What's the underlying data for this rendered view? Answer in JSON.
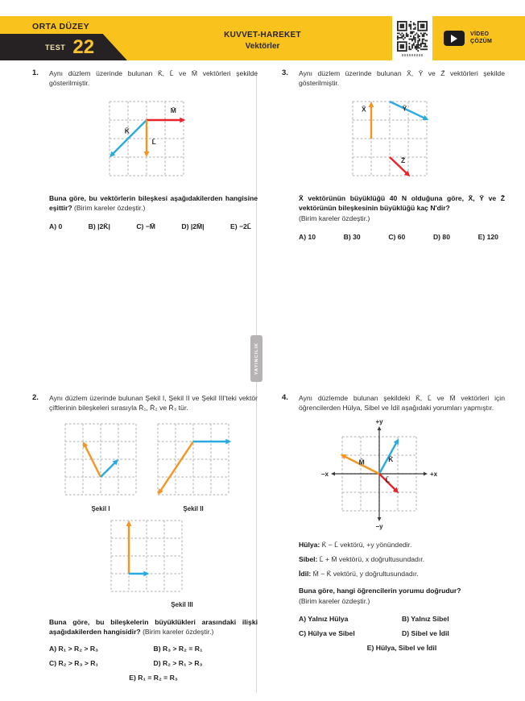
{
  "header": {
    "level": "ORTA DÜZEY",
    "test_word": "TEST",
    "test_number": "22",
    "subject": "KUVVET-HAREKET",
    "topic": "Vektörler",
    "video_label": "VİDEO ÇÖZÜM"
  },
  "divider": {
    "tab_text": "YAYINCILIK"
  },
  "colors": {
    "yellow": "#f9c21d",
    "blue": "#29abe2",
    "orange": "#f7941e",
    "red": "#e8232a",
    "grid": "#c8c8c8",
    "axis": "#3a3a3a",
    "label": "#2a2a2a"
  },
  "q1": {
    "number": "1.",
    "intro": "Aynı düzlem üzerinde bulunan K̄, L̄ ve M̄ vektörleri şekilde gösterilmiştir.",
    "question": "Buna göre, bu vektörlerin bileşkesi aşağıdakilerden hangisine eşittir?",
    "note": "(Birim kareler özdeştir.)",
    "options": [
      "A) 0",
      "B) |2K̄|",
      "C) −M̄",
      "D) |2M̄|",
      "E) −2L̄"
    ]
  },
  "q2": {
    "number": "2.",
    "intro": "Aynı düzlem üzerinde bulunan Şekil I, Şekil II ve Şekil III'teki vektör çiftlerinin bileşkeleri sırasıyla R̄₁, R̄₂ ve R̄₃ tür.",
    "question": "Buna göre, bu bileşkelerin büyüklükleri arasındaki ilişki aşağıdakilerden hangisidir?",
    "note": "(Birim kareler özdeştir.)",
    "captions": [
      "Şekil I",
      "Şekil II",
      "Şekil III"
    ],
    "options": [
      "A) R₁ > R₂ > R₃",
      "B) R₃ > R₂ = R₁",
      "C) R₂ > R₃ > R₁",
      "D) R₂ > R₁ > R₃",
      "E) R₁ = R₂ = R₃"
    ]
  },
  "q3": {
    "number": "3.",
    "intro": "Aynı düzlem üzerinde bulunan X̄, Ȳ ve Z̄ vektörleri şekilde gösterilmiştir.",
    "question": "X̄ vektörünün büyüklüğü 40 N olduğuna göre, X̄, Ȳ ve Z̄ vektörünün bileşkesinin büyüklüğü kaç N'dir?",
    "note": "(Birim kareler özdeştir.)",
    "options": [
      "A) 10",
      "B) 30",
      "C) 60",
      "D) 80",
      "E) 120"
    ]
  },
  "q4": {
    "number": "4.",
    "intro": "Aynı düzlemde bulunan şekildeki K̄, L̄ ve M̄ vektörleri için öğrencilerden Hülya, Sibel ve İdil aşağıdaki yorumları yapmıştır.",
    "statements": [
      {
        "name": "Hülya:",
        "text": "K̄ − L̄ vektörü, +y yönündedir."
      },
      {
        "name": "Sibel:",
        "text": "L̄ + M̄ vektörü, x doğrultusundadır."
      },
      {
        "name": "İdil:",
        "text": "M̄ − K̄ vektörü, y doğrultusundadır."
      }
    ],
    "question": "Buna göre, hangi öğrencilerin yorumu doğrudur?",
    "note": "(Birim kareler özdeştir.)",
    "options": [
      "A) Yalnız Hülya",
      "B) Yalnız Sibel",
      "C) Hülya ve Sibel",
      "D) Sibel ve İdil",
      "E) Hülya, Sibel ve İdil"
    ]
  },
  "figures": {
    "fig1": {
      "cols": 4,
      "rows": 4,
      "cell": 23,
      "padx": 9,
      "pady": 9,
      "vectors": [
        {
          "color": "red",
          "from": [
            2,
            1
          ],
          "to": [
            4.1,
            1
          ],
          "label": "M̄",
          "label_at": [
            3.45,
            0.6
          ]
        },
        {
          "color": "blue",
          "from": [
            2,
            1
          ],
          "to": [
            0,
            3
          ],
          "label": "K̄",
          "label_at": [
            0.95,
            1.72
          ]
        },
        {
          "color": "orange",
          "from": [
            2,
            1
          ],
          "to": [
            2,
            3
          ],
          "label": "L̄",
          "label_at": [
            2.4,
            2.3
          ]
        }
      ]
    },
    "fig2a": {
      "cols": 4,
      "rows": 4,
      "cell": 22,
      "padx": 6,
      "pady": 6,
      "vectors": [
        {
          "color": "orange",
          "from": [
            2,
            3
          ],
          "to": [
            1,
            1
          ]
        },
        {
          "color": "blue",
          "from": [
            2,
            3
          ],
          "to": [
            3,
            2
          ]
        }
      ]
    },
    "fig2b": {
      "cols": 4,
      "rows": 4,
      "cell": 22,
      "padx": 6,
      "pady": 6,
      "vectors": [
        {
          "color": "orange",
          "from": [
            2,
            1
          ],
          "to": [
            0,
            4
          ]
        },
        {
          "color": "blue",
          "from": [
            2,
            1
          ],
          "to": [
            4.15,
            1
          ]
        }
      ]
    },
    "fig2c": {
      "cols": 4,
      "rows": 4,
      "cell": 22,
      "padx": 6,
      "pady": 6,
      "vectors": [
        {
          "color": "orange",
          "from": [
            1,
            3
          ],
          "to": [
            1,
            0
          ]
        },
        {
          "color": "blue",
          "from": [
            1,
            3
          ],
          "to": [
            2.15,
            3
          ]
        }
      ]
    },
    "fig3": {
      "cols": 4,
      "rows": 4,
      "cell": 23,
      "padx": 9,
      "pady": 9,
      "vectors": [
        {
          "color": "orange",
          "from": [
            1,
            2
          ],
          "to": [
            1,
            0
          ],
          "label": "X̄",
          "label_at": [
            0.6,
            0.55
          ]
        },
        {
          "color": "blue",
          "from": [
            2,
            0
          ],
          "to": [
            4.1,
            1
          ],
          "label": "Ȳ",
          "label_at": [
            2.8,
            0.5
          ]
        },
        {
          "color": "red",
          "from": [
            2,
            3
          ],
          "to": [
            3.1,
            4.05
          ],
          "label": "Z̄",
          "label_at": [
            2.72,
            3.3
          ]
        }
      ]
    },
    "fig4": {
      "cols": 4,
      "rows": 4,
      "cell": 23,
      "padx": 30,
      "pady": 26,
      "axes": true,
      "axis_labels": {
        "top": "+y",
        "bottom": "−y",
        "left": "−x",
        "right": "+x"
      },
      "vectors": [
        {
          "color": "blue",
          "from": [
            2,
            2
          ],
          "to": [
            3.05,
            0.1
          ],
          "label": "K̄",
          "label_at": [
            2.62,
            1.35
          ]
        },
        {
          "color": "orange",
          "from": [
            2,
            2
          ],
          "to": [
            -0.1,
            0.95
          ],
          "label": "M̄",
          "label_at": [
            1.05,
            1.5
          ]
        },
        {
          "color": "red",
          "from": [
            2,
            2
          ],
          "to": [
            3.05,
            3.05
          ],
          "label": "L̄",
          "label_at": [
            2.45,
            2.45
          ]
        }
      ]
    }
  }
}
